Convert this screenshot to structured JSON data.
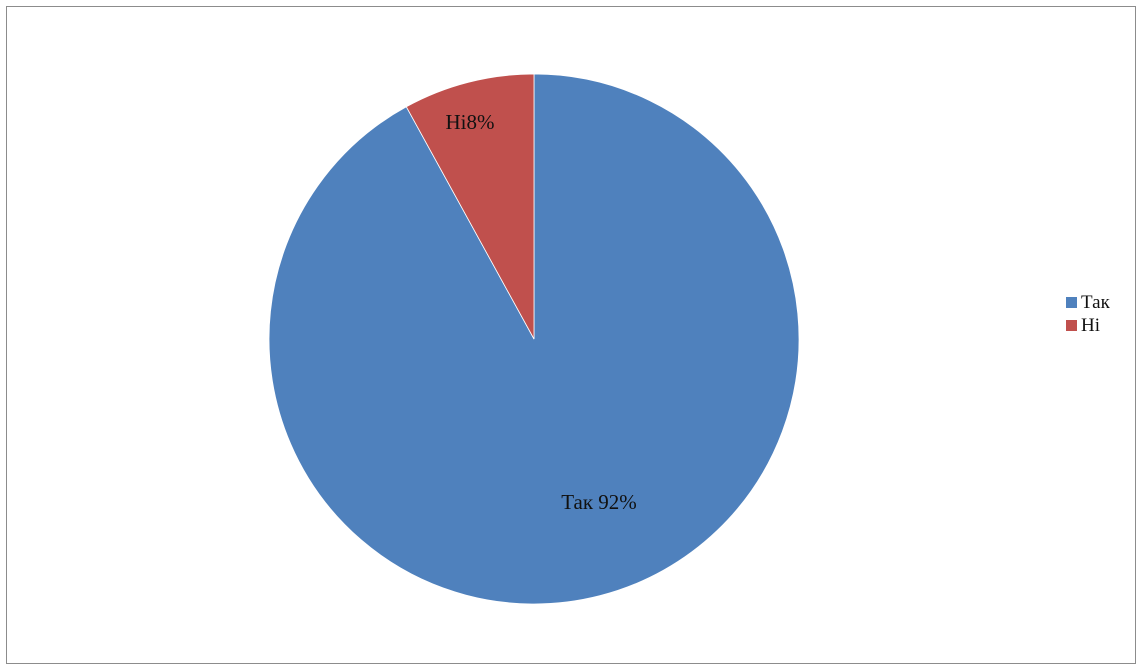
{
  "chart_data": {
    "type": "pie",
    "slices": [
      {
        "label": "Так",
        "value": 92,
        "data_label": "Так 92%",
        "color": "#4f81bd"
      },
      {
        "label": "Ні",
        "value": 8,
        "data_label": "Ні8%",
        "color": "#c0504d"
      }
    ],
    "legend_position": "right",
    "start_angle_deg": 0,
    "direction": "clockwise"
  },
  "legend": {
    "items": [
      {
        "label": "Так",
        "color": "#4f81bd"
      },
      {
        "label": "Ні",
        "color": "#c0504d"
      }
    ]
  }
}
